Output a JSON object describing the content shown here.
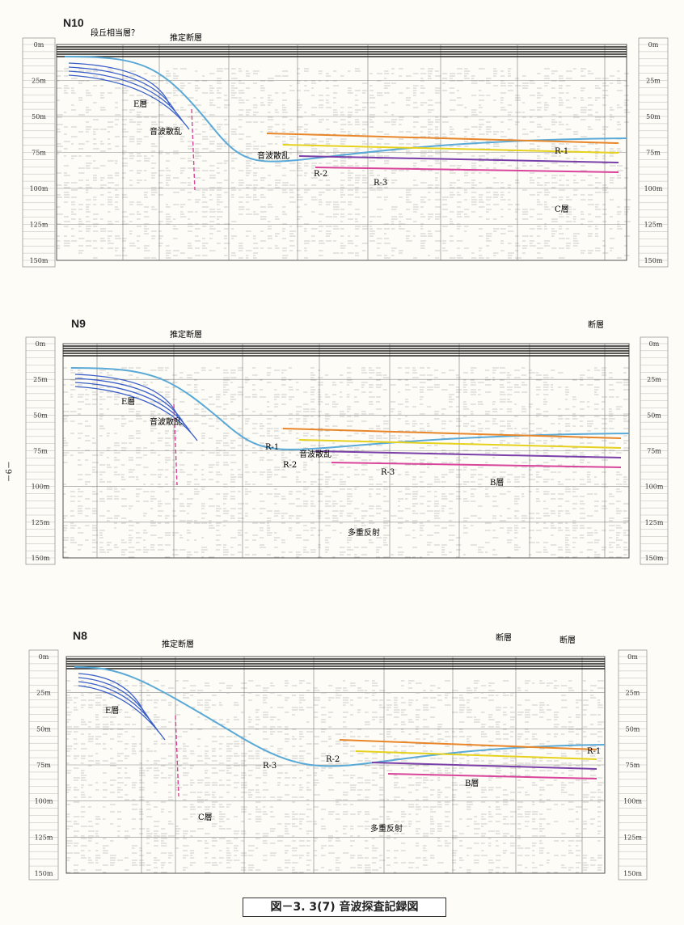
{
  "panels": [
    {
      "id": "N10",
      "title": "N10",
      "scale_labels": [
        "0m",
        "25m",
        "50m",
        "75m",
        "100m",
        "125m",
        "150m"
      ],
      "annotations": {
        "terrace": "段丘相当層？",
        "fault_est": "推定断層",
        "e_layer": "E層",
        "scatter1": "音波散乱",
        "scatter2": "音波散乱",
        "r1": "R-1",
        "r2": "R-2",
        "r3": "R-3",
        "c_layer": "C層"
      }
    },
    {
      "id": "N9",
      "title": "N9",
      "scale_labels": [
        "0m",
        "25m",
        "50m",
        "75m",
        "100m",
        "125m",
        "150m"
      ],
      "annotations": {
        "fault_est": "推定断層",
        "fault": "断層",
        "e_layer": "E層",
        "scatter1": "音波散乱",
        "scatter2": "音波散乱",
        "r1": "R-1",
        "r2": "R-2",
        "r3": "R-3",
        "b_layer": "B層",
        "multiple": "多重反射"
      }
    },
    {
      "id": "N8",
      "title": "N8",
      "scale_labels": [
        "0m",
        "25m",
        "50m",
        "75m",
        "100m",
        "125m",
        "150m"
      ],
      "annotations": {
        "fault_est": "推定断層",
        "fault1": "断層",
        "fault2": "断層",
        "e_layer": "E層",
        "r1": "R-1",
        "r2": "R-2",
        "r3": "R-3",
        "b_layer": "B層",
        "c_layer": "C層",
        "multiple": "多重反射"
      }
    }
  ],
  "side_page_number": "－9－",
  "caption": "図－3. 3(7) 音波探査記録図",
  "colors": {
    "seafloor": "#5aa9d6",
    "orange": "#e8862a",
    "yellow": "#e6d21e",
    "purple": "#7a3fa8",
    "pink": "#d8459a",
    "blue": "#3a5fc8",
    "red": "#c83a3a",
    "fault": "#d8459a"
  }
}
